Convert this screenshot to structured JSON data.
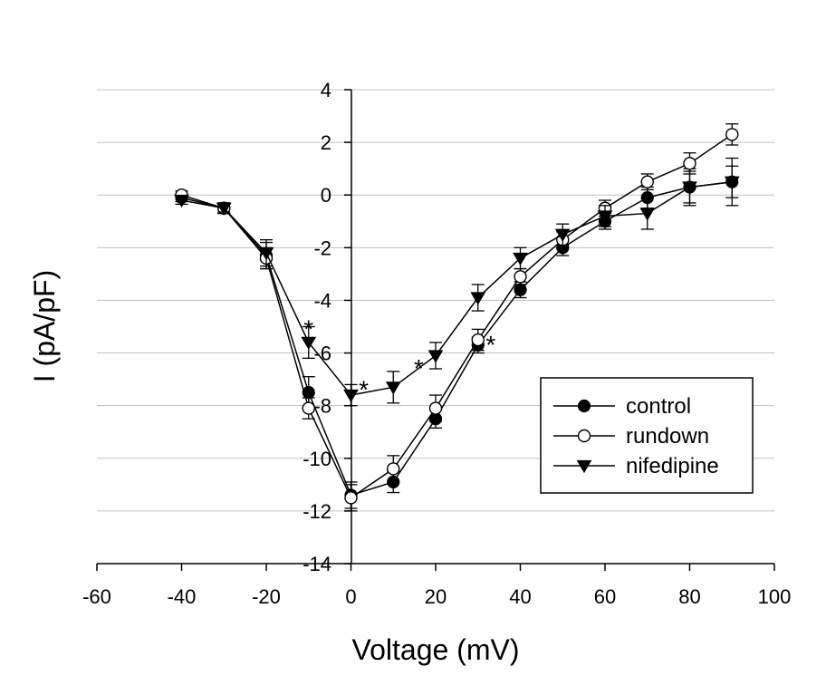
{
  "chart_data": {
    "type": "line",
    "xlabel": "Voltage (mV)",
    "ylabel": "I (pA/pF)",
    "xlim": [
      -60,
      100
    ],
    "ylim": [
      -14,
      4
    ],
    "xticks": [
      -60,
      -40,
      -20,
      0,
      20,
      40,
      60,
      80,
      100
    ],
    "yticks": [
      -14,
      -12,
      -10,
      -8,
      -6,
      -4,
      -2,
      0,
      2,
      4
    ],
    "grid": "horizontal",
    "legend_position": "lower-right",
    "x": [
      -40,
      -30,
      -20,
      -10,
      0,
      10,
      20,
      30,
      40,
      50,
      60,
      70,
      80,
      90
    ],
    "series": [
      {
        "name": "control",
        "marker": "filled-circle",
        "color": "#000000",
        "values": [
          -0.1,
          -0.5,
          -2.3,
          -7.5,
          -11.4,
          -10.9,
          -8.5,
          -5.7,
          -3.6,
          -2.0,
          -1.0,
          -0.1,
          0.3,
          0.5
        ],
        "errors": [
          0.15,
          0.2,
          0.5,
          0.6,
          0.5,
          0.4,
          0.35,
          0.3,
          0.3,
          0.3,
          0.3,
          0.4,
          0.7,
          0.9
        ]
      },
      {
        "name": "rundown",
        "marker": "open-circle",
        "color": "#000000",
        "values": [
          0.0,
          -0.5,
          -2.4,
          -8.1,
          -11.5,
          -10.4,
          -8.1,
          -5.5,
          -3.1,
          -1.7,
          -0.5,
          0.5,
          1.2,
          2.3
        ],
        "errors": [
          0.15,
          0.2,
          0.4,
          0.4,
          0.5,
          0.5,
          0.5,
          0.4,
          0.3,
          0.3,
          0.3,
          0.3,
          0.4,
          0.4
        ]
      },
      {
        "name": "nifedipine",
        "marker": "filled-triangle-down",
        "color": "#000000",
        "values": [
          -0.2,
          -0.5,
          -2.2,
          -5.6,
          -7.6,
          -7.3,
          -6.1,
          -3.9,
          -2.4,
          -1.5,
          -0.8,
          -0.7,
          0.3,
          0.5
        ],
        "errors": [
          0.15,
          0.15,
          0.5,
          0.6,
          0.4,
          0.6,
          0.5,
          0.5,
          0.4,
          0.4,
          0.4,
          0.6,
          0.6,
          0.6
        ]
      }
    ],
    "annotations": [
      {
        "text": "*",
        "x": -10,
        "y": -5.0
      },
      {
        "text": "*",
        "x": 3,
        "y": -7.3
      },
      {
        "text": "*",
        "x": 16,
        "y": -6.5
      },
      {
        "text": "*",
        "x": 33,
        "y": -5.6
      }
    ]
  }
}
